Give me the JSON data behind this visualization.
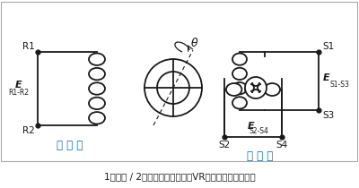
{
  "title": "1相励磁 / 2相出力の電気回路（VR型レゾルバーの例）",
  "label_R1": "R1",
  "label_R2": "R2",
  "label_S1": "S1",
  "label_S2": "S2",
  "label_S3": "S3",
  "label_S4": "S4",
  "label_ER1R2_E": "E",
  "label_ER1R2_sub": "R1-R2",
  "label_ES1S3_E": "E",
  "label_ES1S3_sub": "S1-S3",
  "label_ES2S4_E": "E",
  "label_ES2S4_sub": "S2-S4",
  "label_excitation": "励 磁 側",
  "label_output": "出 力 側",
  "label_theta": "θ",
  "bg_color": "#ffffff",
  "line_color": "#1a1a1a",
  "blue_color": "#0070c0",
  "border_color": "#aaaaaa"
}
